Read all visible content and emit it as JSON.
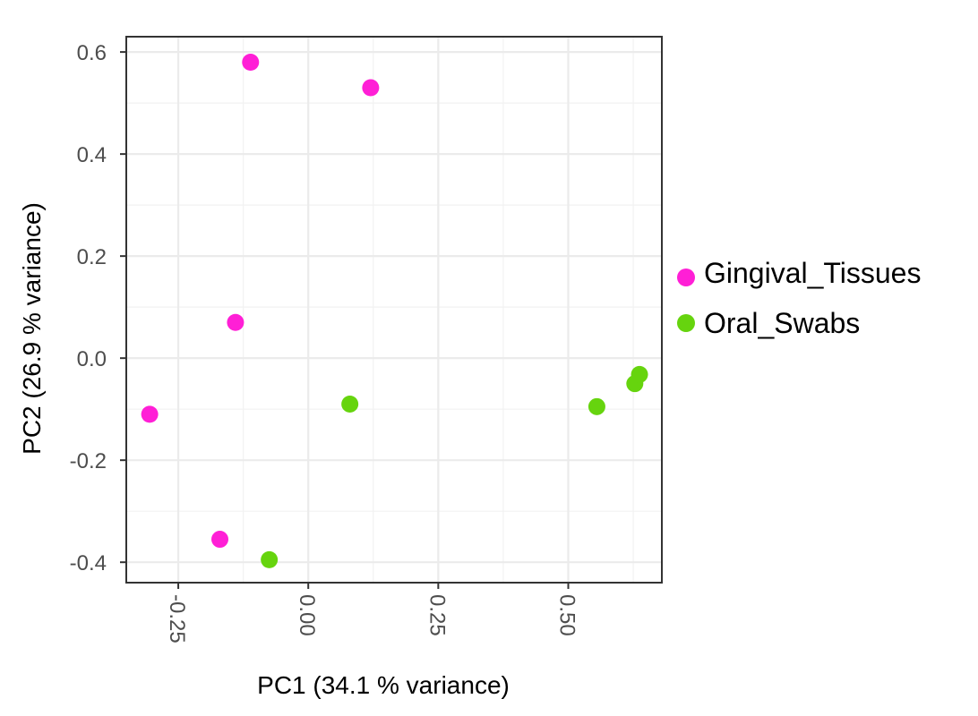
{
  "chart_data": {
    "type": "scatter",
    "xlabel": "PC1 (34.1 % variance)",
    "ylabel": "PC2 (26.9 % variance)",
    "xlim": [
      -0.35,
      0.68
    ],
    "ylim": [
      -0.44,
      0.63
    ],
    "x_ticks": [
      -0.25,
      0.0,
      0.25,
      0.5
    ],
    "x_tick_labels": [
      "-0.25",
      "0.00",
      "0.25",
      "0.50"
    ],
    "y_ticks": [
      -0.4,
      -0.2,
      0.0,
      0.2,
      0.4,
      0.6
    ],
    "y_tick_labels": [
      "-0.4",
      "-0.2",
      "0.0",
      "0.2",
      "0.4",
      "0.6"
    ],
    "grid": true,
    "legend_position": "right",
    "series": [
      {
        "name": "Gingival_Tissues",
        "color": "#ff1fd6",
        "points": [
          {
            "x": -0.111,
            "y": 0.58
          },
          {
            "x": 0.12,
            "y": 0.53
          },
          {
            "x": -0.14,
            "y": 0.07
          },
          {
            "x": -0.305,
            "y": -0.11
          },
          {
            "x": -0.17,
            "y": -0.355
          }
        ]
      },
      {
        "name": "Oral_Swabs",
        "color": "#66d40e",
        "points": [
          {
            "x": 0.08,
            "y": -0.09
          },
          {
            "x": -0.075,
            "y": -0.395
          },
          {
            "x": 0.555,
            "y": -0.095
          },
          {
            "x": 0.628,
            "y": -0.05
          },
          {
            "x": 0.637,
            "y": -0.032
          }
        ]
      }
    ]
  }
}
